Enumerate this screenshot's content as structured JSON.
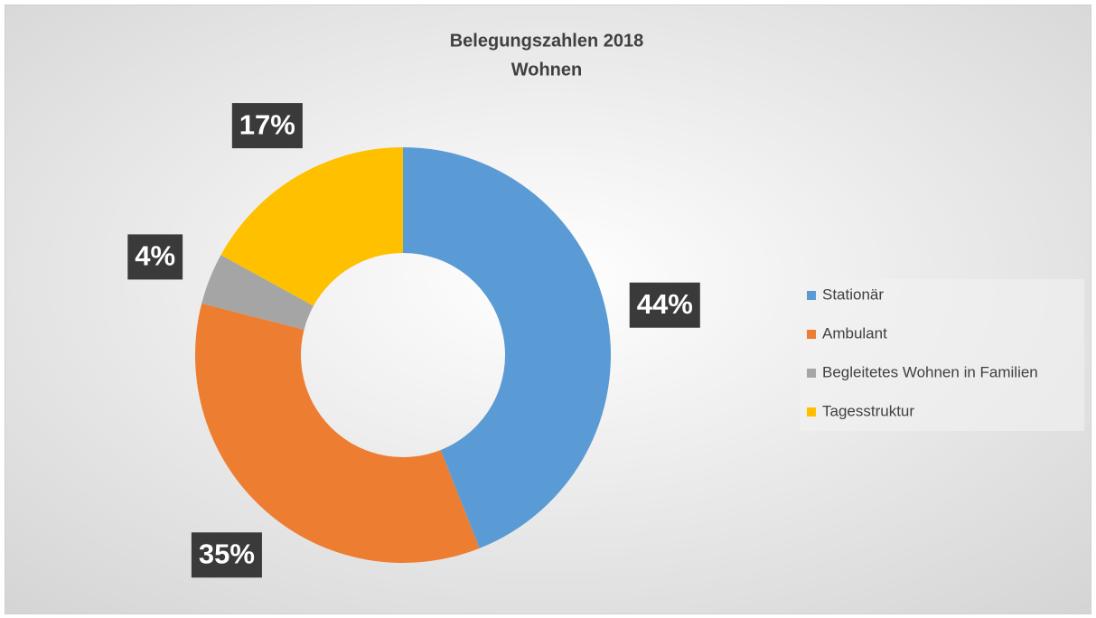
{
  "chart_data": {
    "type": "donut",
    "title": "Belegungszahlen 2018",
    "subtitle": "Wohnen",
    "categories": [
      "Stationär",
      "Ambulant",
      "Begleitetes Wohnen in Familien",
      "Tagesstruktur"
    ],
    "values": [
      44,
      35,
      4,
      17
    ],
    "value_labels": [
      "44%",
      "35%",
      "4%",
      "17%"
    ],
    "colors": [
      "#5b9bd5",
      "#ed7d31",
      "#a5a5a5",
      "#ffc000"
    ],
    "legend": "right"
  }
}
